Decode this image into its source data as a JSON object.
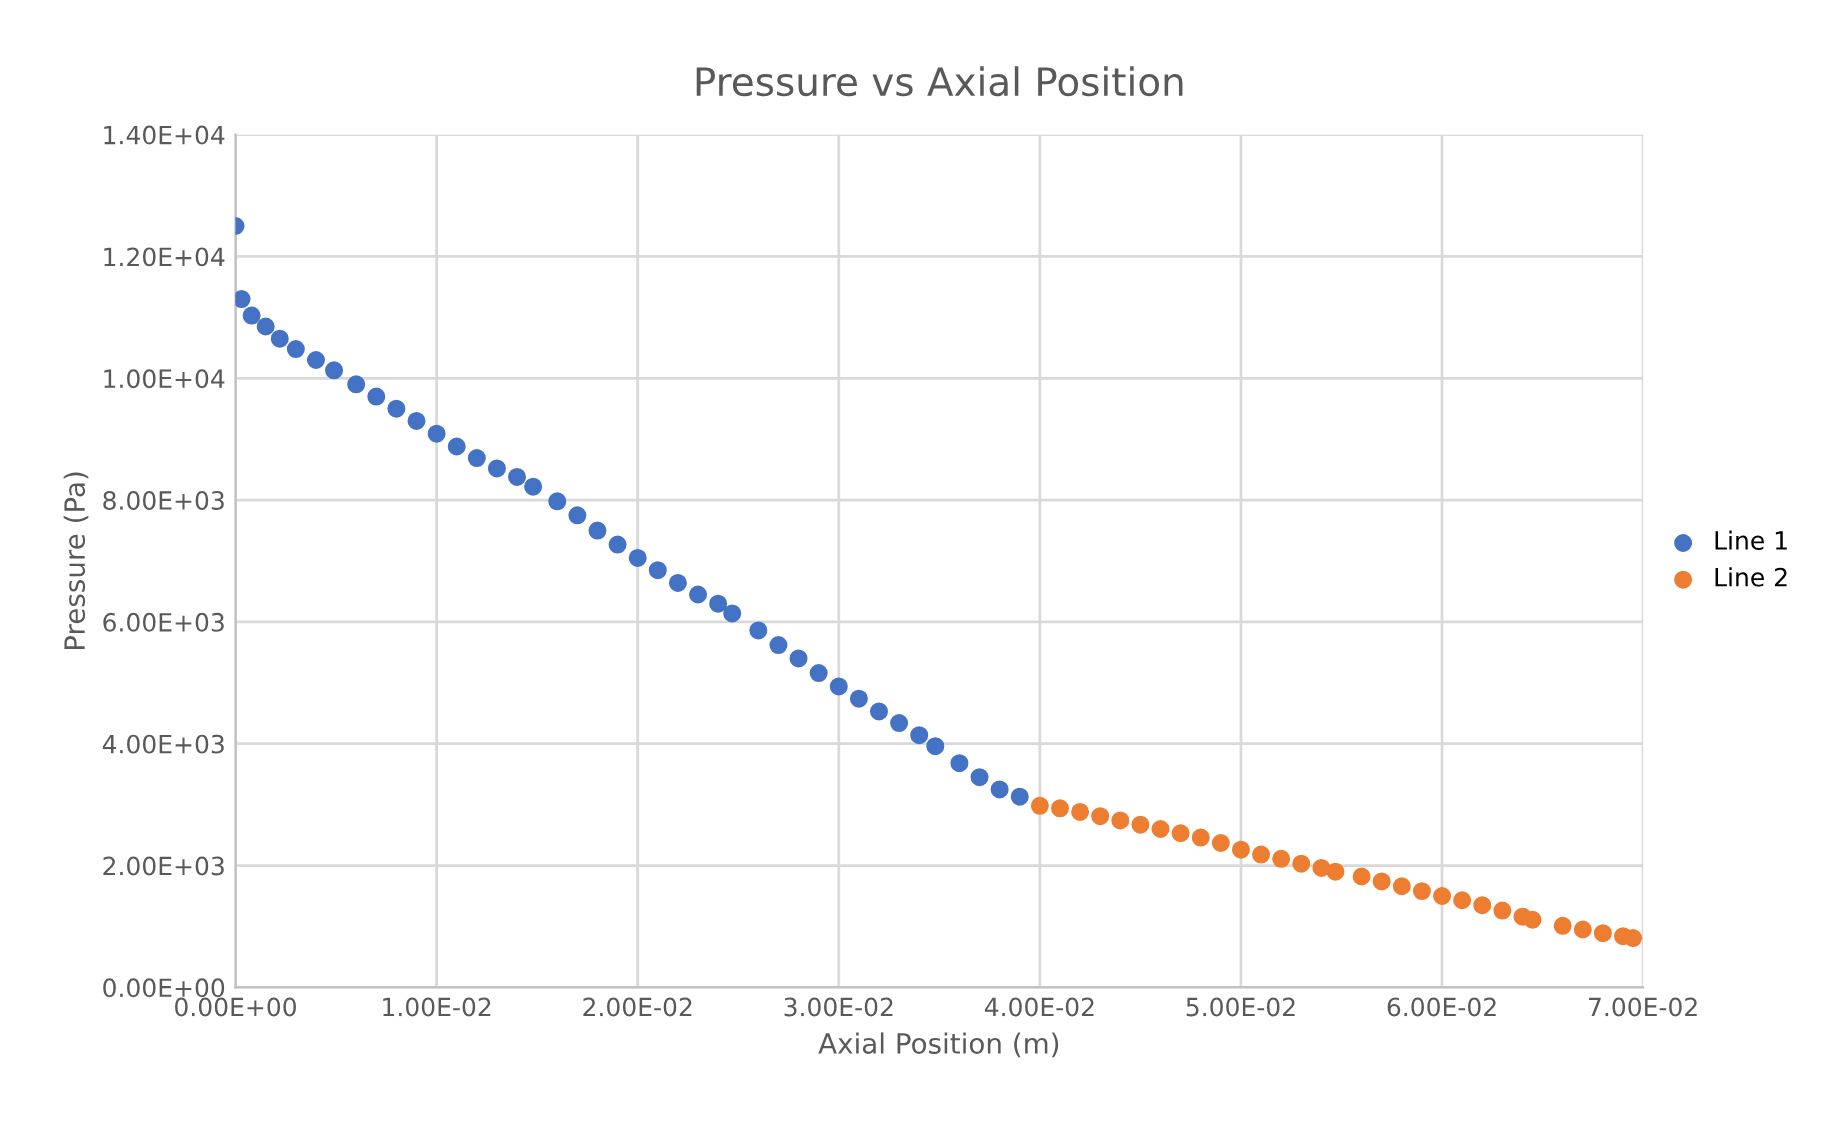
{
  "chart_data": {
    "type": "scatter",
    "title": "Pressure vs Axial Position",
    "xlabel": "Axial Position (m)",
    "ylabel": "Pressure (Pa)",
    "series": [
      {
        "name": "Line 1",
        "color": "#4472c4",
        "x": [
          0,
          0.0003,
          0.0008,
          0.0015,
          0.0022,
          0.003,
          0.004,
          0.0049,
          0.006,
          0.007,
          0.008,
          0.009,
          0.01,
          0.011,
          0.012,
          0.013,
          0.014,
          0.0148,
          0.016,
          0.017,
          0.018,
          0.019,
          0.02,
          0.021,
          0.022,
          0.023,
          0.024,
          0.0247,
          0.026,
          0.027,
          0.028,
          0.029,
          0.03,
          0.031,
          0.032,
          0.033,
          0.034,
          0.0348,
          0.036,
          0.037,
          0.038,
          0.039
        ],
        "values": [
          12500,
          11300,
          11030,
          10850,
          10650,
          10480,
          10300,
          10130,
          9900,
          9700,
          9500,
          9300,
          9090,
          8880,
          8690,
          8520,
          8380,
          8220,
          7980,
          7750,
          7500,
          7270,
          7050,
          6850,
          6640,
          6450,
          6300,
          6140,
          5860,
          5620,
          5400,
          5160,
          4940,
          4740,
          4530,
          4340,
          4140,
          3960,
          3680,
          3450,
          3250,
          3130
        ]
      },
      {
        "name": "Line 2",
        "color": "#ed7d31",
        "x": [
          0.04,
          0.041,
          0.042,
          0.043,
          0.044,
          0.045,
          0.046,
          0.047,
          0.048,
          0.049,
          0.05,
          0.051,
          0.052,
          0.053,
          0.054,
          0.0547,
          0.056,
          0.057,
          0.058,
          0.059,
          0.06,
          0.061,
          0.062,
          0.063,
          0.064,
          0.0645,
          0.066,
          0.067,
          0.068,
          0.069,
          0.0695
        ],
        "values": [
          2980,
          2940,
          2880,
          2810,
          2740,
          2670,
          2600,
          2530,
          2460,
          2370,
          2260,
          2180,
          2110,
          2030,
          1960,
          1900,
          1820,
          1740,
          1660,
          1580,
          1500,
          1430,
          1350,
          1260,
          1160,
          1110,
          1010,
          950,
          890,
          840,
          810
        ]
      }
    ],
    "xlim": [
      0,
      0.07
    ],
    "xticks": [
      {
        "value": 0,
        "label": "0.00E+00"
      },
      {
        "value": 0.01,
        "label": "1.00E-02"
      },
      {
        "value": 0.02,
        "label": "2.00E-02"
      },
      {
        "value": 0.03,
        "label": "3.00E-02"
      },
      {
        "value": 0.04,
        "label": "4.00E-02"
      },
      {
        "value": 0.05,
        "label": "5.00E-02"
      },
      {
        "value": 0.06,
        "label": "6.00E-02"
      },
      {
        "value": 0.07,
        "label": "7.00E-02"
      }
    ],
    "ylim": [
      0,
      14000
    ],
    "yticks": [
      {
        "value": 0,
        "label": "0.00E+00"
      },
      {
        "value": 2000,
        "label": "2.00E+03"
      },
      {
        "value": 4000,
        "label": "4.00E+03"
      },
      {
        "value": 6000,
        "label": "6.00E+03"
      },
      {
        "value": 8000,
        "label": "8.00E+03"
      },
      {
        "value": 10000,
        "label": "1.00E+04"
      },
      {
        "value": 12000,
        "label": "1.20E+04"
      },
      {
        "value": 14000,
        "label": "1.40E+04"
      }
    ],
    "grid": true,
    "legend": "right",
    "marker": "circle"
  }
}
